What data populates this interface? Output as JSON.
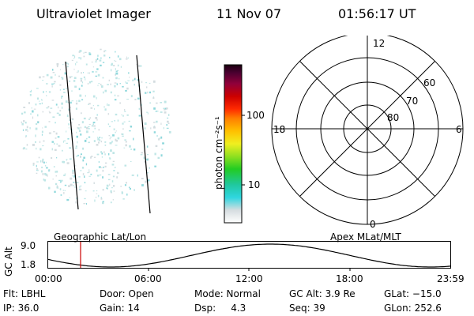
{
  "header": {
    "instrument": "Ultraviolet Imager",
    "date": "11 Nov 07",
    "time": "01:56:17 UT"
  },
  "colorbar": {
    "unit": "photon cm⁻²s⁻¹",
    "tick_100": "100",
    "tick_10": "10"
  },
  "polar": {
    "mlt_top": "12",
    "mlt_left": "18",
    "mlt_right": "6",
    "mlt_bottom": "0",
    "lat_60": "60",
    "lat_70": "70",
    "lat_80": "80"
  },
  "orbit": {
    "left_title": "Geographic Lat/Lon",
    "right_title": "Apex MLat/MLT",
    "ylabel": "GC Alt",
    "y_max": "9.0",
    "y_min": "1.8",
    "x_ticks": [
      "00:00",
      "06:00",
      "12:00",
      "18:00",
      "23:59"
    ],
    "marker_color": "#cc0000"
  },
  "info": {
    "flt": "Flt: LBHL",
    "door": "Door: Open",
    "mode": "Mode: Normal",
    "gcalt": "GC Alt: 3.9 Re",
    "glat": "GLat: −15.0",
    "ip": "IP: 36.0",
    "gain": "Gain: 14",
    "dsp": "Dsp:     4.3",
    "seq": "Seq: 39",
    "glon": "GLon: 252.6"
  }
}
